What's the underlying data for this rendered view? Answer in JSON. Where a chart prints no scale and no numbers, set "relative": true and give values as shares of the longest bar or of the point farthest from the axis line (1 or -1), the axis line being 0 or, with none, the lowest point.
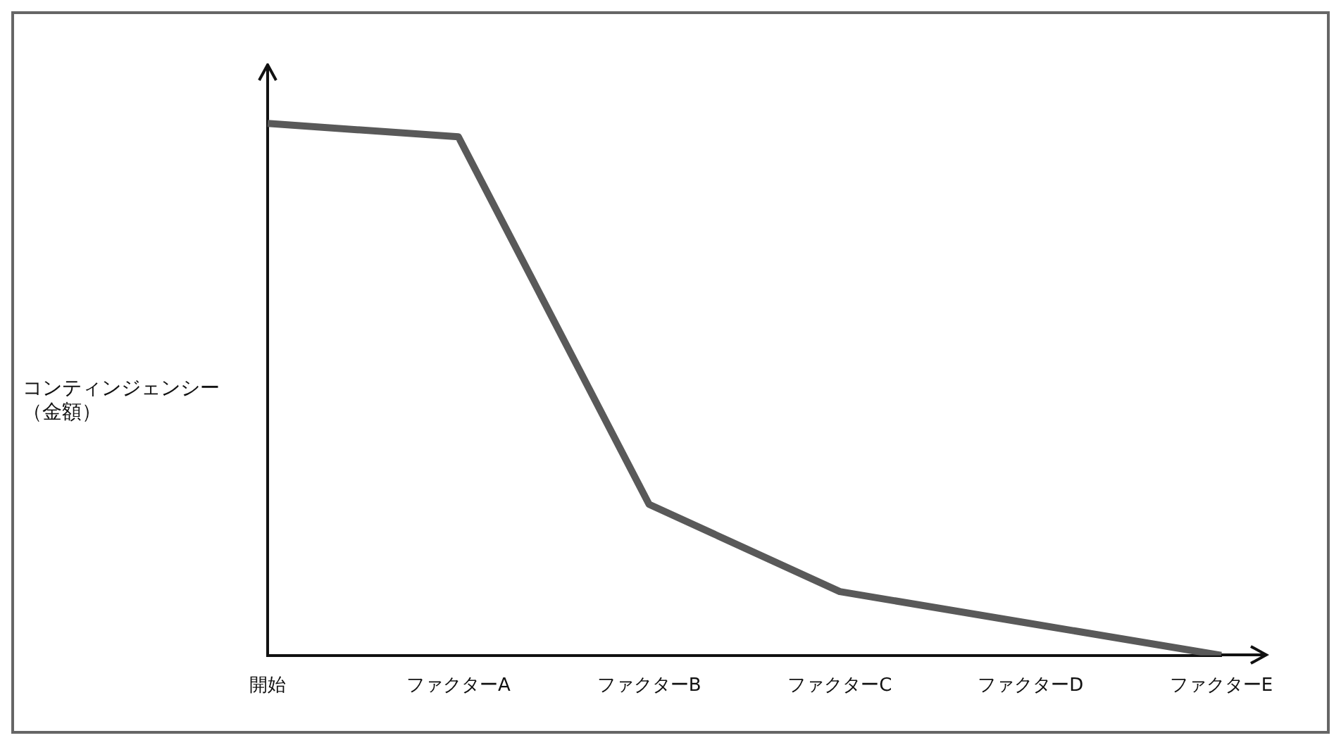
{
  "chart_data": {
    "type": "line",
    "relative": true,
    "ylabel": "コンティンジェンシー（金額）",
    "categories": [
      "開始",
      "ファクターA",
      "ファクターB",
      "ファクターC",
      "ファクターD",
      "ファクターE"
    ],
    "series": [
      {
        "color": "#595959",
        "values": [
          1,
          0.975,
          0.284,
          0.12,
          0.06,
          0
        ]
      }
    ],
    "grid": false,
    "legend": false,
    "marker": "none",
    "line_style": "solid"
  }
}
